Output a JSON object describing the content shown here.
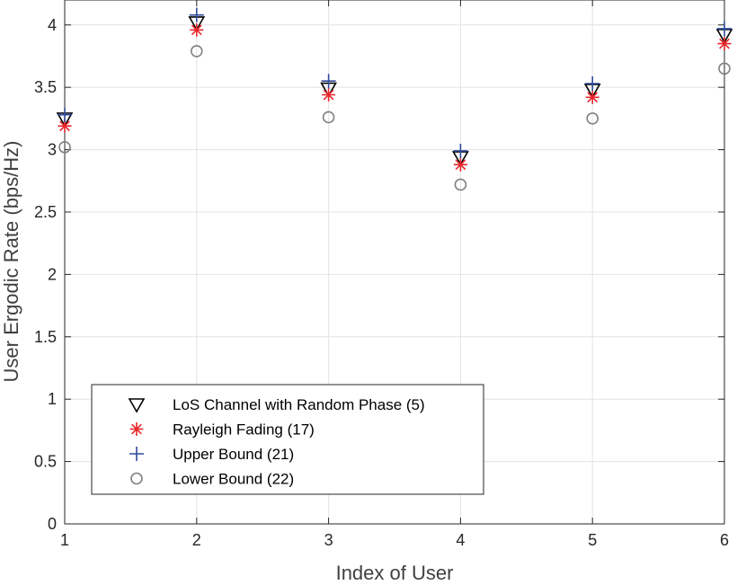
{
  "chart_data": {
    "type": "scatter",
    "title": "",
    "xlabel": "Index of User",
    "ylabel": "User Ergodic Rate (bps/Hz)",
    "xlim": [
      1,
      6
    ],
    "ylim": [
      0,
      4.2
    ],
    "xticks": [
      "1",
      "2",
      "3",
      "4",
      "5",
      "6"
    ],
    "yticks": [
      "0",
      "0.5",
      "1",
      "1.5",
      "2",
      "2.5",
      "3",
      "3.5",
      "4"
    ],
    "grid": true,
    "legend_position": "bottom-left",
    "x": [
      1,
      2,
      3,
      4,
      5,
      6
    ],
    "series": [
      {
        "name": "LoS Channel with Random Phase (5)",
        "marker": "triangle-down",
        "color": "#000000",
        "values": [
          3.25,
          4.02,
          3.49,
          2.94,
          3.48,
          3.92
        ]
      },
      {
        "name": "Rayleigh Fading (17)",
        "marker": "asterisk",
        "color": "#e8262b",
        "values": [
          3.19,
          3.96,
          3.44,
          2.88,
          3.42,
          3.85
        ]
      },
      {
        "name": "Upper Bound (21)",
        "marker": "plus",
        "color": "#2e4a9a",
        "values": [
          3.28,
          4.08,
          3.55,
          2.99,
          3.53,
          3.97
        ]
      },
      {
        "name": "Lower Bound (22)",
        "marker": "circle",
        "color": "#808080",
        "values": [
          3.02,
          3.79,
          3.26,
          2.72,
          3.25,
          3.65
        ]
      }
    ]
  }
}
